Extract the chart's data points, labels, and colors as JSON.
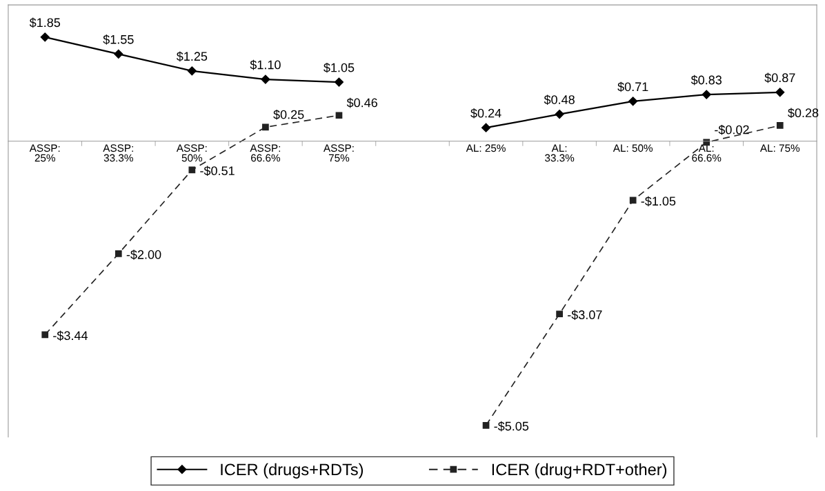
{
  "chart_data": {
    "type": "line",
    "categories": [
      "ASSP:\n25%",
      "ASSP:\n33.3%",
      "ASSP:\n50%",
      "ASSP:\n66.6%",
      "ASSP:\n75%",
      null,
      "AL: 25%",
      "AL:\n33.3%",
      "AL: 50%",
      "AL:\n66.6%",
      "AL: 75%"
    ],
    "series": [
      {
        "name": "ICER (drugs+RDTs)",
        "color": "#000000",
        "marker": "diamond",
        "line_style": "solid",
        "values": [
          1.85,
          1.55,
          1.25,
          1.1,
          1.05,
          null,
          0.24,
          0.48,
          0.71,
          0.83,
          0.87
        ],
        "value_labels": [
          "$1.85",
          "$1.55",
          "$1.25",
          "$1.10",
          "$1.05",
          null,
          "$0.24",
          "$0.48",
          "$0.71",
          "$0.83",
          "$0.87"
        ]
      },
      {
        "name": "ICER (drug+RDT+other)",
        "color": "#222222",
        "marker": "square",
        "line_style": "dashed",
        "values": [
          -3.44,
          -2.0,
          -0.51,
          0.25,
          0.46,
          null,
          -5.05,
          -3.07,
          -1.05,
          -0.02,
          0.28
        ],
        "value_labels": [
          "-$3.44",
          "-$2.00",
          "-$0.51",
          "$0.25",
          "$0.46",
          null,
          "-$5.05",
          "-$3.07",
          "-$1.05",
          "-$0.02",
          "$0.28"
        ]
      }
    ],
    "tick_labels": "x",
    "grid": false,
    "legend": "bottom"
  }
}
